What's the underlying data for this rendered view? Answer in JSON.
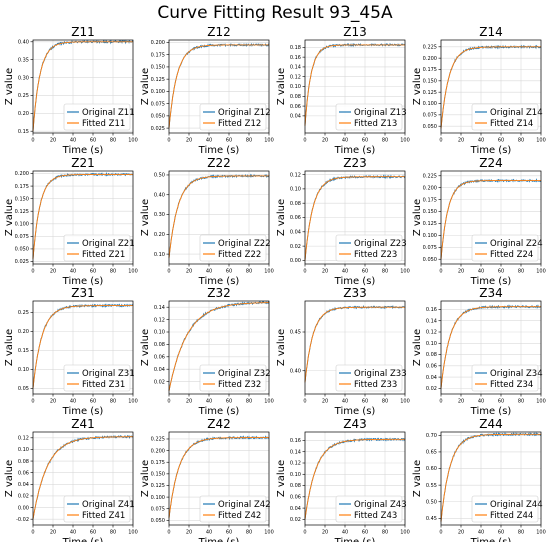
{
  "figure": {
    "title": "Curve Fitting Result 93_45A"
  },
  "colors": {
    "original": "#1f77b4",
    "fitted": "#ff7f0e",
    "grid": "#d9d9d9",
    "axes": "#000000"
  },
  "chart_data": [
    {
      "type": "line",
      "title": "Z11",
      "xlabel": "Time (s)",
      "ylabel": "Z value",
      "xlim": [
        0,
        100
      ],
      "xticks": [
        0,
        20,
        40,
        60,
        80,
        100
      ],
      "ylim": [
        0.145,
        0.405
      ],
      "yticks": [
        0.15,
        0.2,
        0.25,
        0.3,
        0.35,
        0.4
      ],
      "ytick_labels": [
        "0.15",
        "0.20",
        "0.25",
        "0.30",
        "0.35",
        "0.40"
      ],
      "y0": 0.15,
      "yinf": 0.4,
      "tau": 7,
      "legend": "lower-right",
      "grid": true,
      "series": [
        {
          "name": "Original Z11",
          "role": "original"
        },
        {
          "name": "Fitted Z11",
          "role": "fitted"
        }
      ]
    },
    {
      "type": "line",
      "title": "Z12",
      "xlabel": "Time (s)",
      "ylabel": "Z value",
      "xlim": [
        0,
        100
      ],
      "xticks": [
        0,
        20,
        40,
        60,
        80,
        100
      ],
      "ylim": [
        0.015,
        0.205
      ],
      "yticks": [
        0.025,
        0.05,
        0.075,
        0.1,
        0.125,
        0.15,
        0.175,
        0.2
      ],
      "ytick_labels": [
        "0.025",
        "0.050",
        "0.075",
        "0.100",
        "0.125",
        "0.150",
        "0.175",
        "0.200"
      ],
      "y0": 0.025,
      "yinf": 0.195,
      "tau": 8,
      "legend": "lower-right",
      "grid": true,
      "series": [
        {
          "name": "Original Z12",
          "role": "original"
        },
        {
          "name": "Fitted Z12",
          "role": "fitted"
        }
      ]
    },
    {
      "type": "line",
      "title": "Z13",
      "xlabel": "Time (s)",
      "ylabel": "Z value",
      "xlim": [
        0,
        100
      ],
      "xticks": [
        0,
        20,
        40,
        60,
        80,
        100
      ],
      "ylim": [
        0.005,
        0.195
      ],
      "yticks": [
        0.04,
        0.06,
        0.08,
        0.1,
        0.12,
        0.14,
        0.16,
        0.18
      ],
      "ytick_labels": [
        "0.04",
        "0.06",
        "0.08",
        "0.10",
        "0.12",
        "0.14",
        "0.16",
        "0.18"
      ],
      "y0": 0.02,
      "yinf": 0.185,
      "tau": 6,
      "legend": "lower-right",
      "grid": true,
      "series": [
        {
          "name": "Original Z13",
          "role": "original"
        },
        {
          "name": "Fitted Z13",
          "role": "fitted"
        }
      ]
    },
    {
      "type": "line",
      "title": "Z14",
      "xlabel": "Time (s)",
      "ylabel": "Z value",
      "xlim": [
        0,
        100
      ],
      "xticks": [
        0,
        20,
        40,
        60,
        80,
        100
      ],
      "ylim": [
        0.035,
        0.24
      ],
      "yticks": [
        0.05,
        0.075,
        0.1,
        0.125,
        0.15,
        0.175,
        0.2,
        0.225
      ],
      "ytick_labels": [
        "0.050",
        "0.075",
        "0.100",
        "0.125",
        "0.150",
        "0.175",
        "0.200",
        "0.225"
      ],
      "y0": 0.045,
      "yinf": 0.225,
      "tau": 8,
      "legend": "lower-right",
      "grid": true,
      "series": [
        {
          "name": "Original Z14",
          "role": "original"
        },
        {
          "name": "Fitted Z14",
          "role": "fitted"
        }
      ]
    },
    {
      "type": "line",
      "title": "Z21",
      "xlabel": "Time (s)",
      "ylabel": "Z value",
      "xlim": [
        0,
        100
      ],
      "xticks": [
        0,
        20,
        40,
        60,
        80,
        100
      ],
      "ylim": [
        0.02,
        0.205
      ],
      "yticks": [
        0.025,
        0.05,
        0.075,
        0.1,
        0.125,
        0.15,
        0.175,
        0.2
      ],
      "ytick_labels": [
        "0.025",
        "0.050",
        "0.075",
        "0.100",
        "0.125",
        "0.150",
        "0.175",
        "0.200"
      ],
      "y0": 0.03,
      "yinf": 0.198,
      "tau": 7,
      "legend": "lower-right",
      "grid": true,
      "series": [
        {
          "name": "Original Z21",
          "role": "original"
        },
        {
          "name": "Fitted Z21",
          "role": "fitted"
        }
      ]
    },
    {
      "type": "line",
      "title": "Z22",
      "xlabel": "Time (s)",
      "ylabel": "Z value",
      "xlim": [
        0,
        100
      ],
      "xticks": [
        0,
        20,
        40,
        60,
        80,
        100
      ],
      "ylim": [
        0.05,
        0.52
      ],
      "yticks": [
        0.1,
        0.2,
        0.3,
        0.4,
        0.5
      ],
      "ytick_labels": [
        "0.10",
        "0.20",
        "0.30",
        "0.40",
        "0.50"
      ],
      "y0": 0.08,
      "yinf": 0.495,
      "tau": 9,
      "legend": "lower-right",
      "grid": true,
      "series": [
        {
          "name": "Original Z22",
          "role": "original"
        },
        {
          "name": "Fitted Z22",
          "role": "fitted"
        }
      ]
    },
    {
      "type": "line",
      "title": "Z23",
      "xlabel": "Time (s)",
      "ylabel": "Z value",
      "xlim": [
        0,
        100
      ],
      "xticks": [
        0,
        20,
        40,
        60,
        80,
        100
      ],
      "ylim": [
        -0.005,
        0.125
      ],
      "yticks": [
        0.0,
        0.02,
        0.04,
        0.06,
        0.08,
        0.1,
        0.12
      ],
      "ytick_labels": [
        "0.00",
        "0.02",
        "0.04",
        "0.06",
        "0.08",
        "0.10",
        "0.12"
      ],
      "y0": 0.0,
      "yinf": 0.117,
      "tau": 8,
      "legend": "lower-right",
      "grid": true,
      "series": [
        {
          "name": "Original Z23",
          "role": "original"
        },
        {
          "name": "Fitted Z23",
          "role": "fitted"
        }
      ]
    },
    {
      "type": "line",
      "title": "Z24",
      "xlabel": "Time (s)",
      "ylabel": "Z value",
      "xlim": [
        0,
        100
      ],
      "xticks": [
        0,
        20,
        40,
        60,
        80,
        100
      ],
      "ylim": [
        0.04,
        0.235
      ],
      "yticks": [
        0.05,
        0.075,
        0.1,
        0.125,
        0.15,
        0.175,
        0.2,
        0.225
      ],
      "ytick_labels": [
        "0.050",
        "0.075",
        "0.100",
        "0.125",
        "0.150",
        "0.175",
        "0.200",
        "0.225"
      ],
      "y0": 0.05,
      "yinf": 0.215,
      "tau": 7,
      "legend": "lower-right",
      "grid": true,
      "series": [
        {
          "name": "Original Z24",
          "role": "original"
        },
        {
          "name": "Fitted Z24",
          "role": "fitted"
        }
      ]
    },
    {
      "type": "line",
      "title": "Z31",
      "xlabel": "Time (s)",
      "ylabel": "Z value",
      "xlim": [
        0,
        100
      ],
      "xticks": [
        0,
        20,
        40,
        60,
        80,
        100
      ],
      "ylim": [
        0.035,
        0.28
      ],
      "yticks": [
        0.05,
        0.1,
        0.15,
        0.2,
        0.25
      ],
      "ytick_labels": [
        "0.05",
        "0.10",
        "0.15",
        "0.20",
        "0.25"
      ],
      "y0": 0.05,
      "yinf": 0.268,
      "tau": 9,
      "legend": "lower-right",
      "grid": true,
      "series": [
        {
          "name": "Original Z31",
          "role": "original"
        },
        {
          "name": "Fitted Z31",
          "role": "fitted"
        }
      ]
    },
    {
      "type": "line",
      "title": "Z32",
      "xlabel": "Time (s)",
      "ylabel": "Z value",
      "xlim": [
        0,
        100
      ],
      "xticks": [
        0,
        20,
        40,
        60,
        80,
        100
      ],
      "ylim": [
        0.0,
        0.15
      ],
      "yticks": [
        0.02,
        0.04,
        0.06,
        0.08,
        0.1,
        0.12,
        0.14
      ],
      "ytick_labels": [
        "0.02",
        "0.04",
        "0.06",
        "0.08",
        "0.10",
        "0.12",
        "0.14"
      ],
      "y0": 0.005,
      "yinf": 0.148,
      "tau": 18,
      "legend": "lower-right",
      "grid": true,
      "series": [
        {
          "name": "Original Z32",
          "role": "original"
        },
        {
          "name": "Fitted Z32",
          "role": "fitted"
        }
      ]
    },
    {
      "type": "line",
      "title": "Z33",
      "xlabel": "Time (s)",
      "ylabel": "Z value",
      "xlim": [
        0,
        100
      ],
      "xticks": [
        0,
        20,
        40,
        60,
        80,
        100
      ],
      "ylim": [
        0.37,
        0.49
      ],
      "yticks": [
        0.4,
        0.45
      ],
      "ytick_labels": [
        "0.40",
        "0.45"
      ],
      "y0": 0.385,
      "yinf": 0.482,
      "tau": 8,
      "legend": "lower-right",
      "grid": true,
      "series": [
        {
          "name": "Original Z33",
          "role": "original"
        },
        {
          "name": "Fitted Z33",
          "role": "fitted"
        }
      ]
    },
    {
      "type": "line",
      "title": "Z34",
      "xlabel": "Time (s)",
      "ylabel": "Z value",
      "xlim": [
        0,
        100
      ],
      "xticks": [
        0,
        20,
        40,
        60,
        80,
        100
      ],
      "ylim": [
        0.01,
        0.175
      ],
      "yticks": [
        0.02,
        0.04,
        0.06,
        0.08,
        0.1,
        0.12,
        0.14,
        0.16
      ],
      "ytick_labels": [
        "0.02",
        "0.04",
        "0.06",
        "0.08",
        "0.10",
        "0.12",
        "0.14",
        "0.16"
      ],
      "y0": 0.02,
      "yinf": 0.165,
      "tau": 9,
      "legend": "lower-right",
      "grid": true,
      "series": [
        {
          "name": "Original Z34",
          "role": "original"
        },
        {
          "name": "Fitted Z34",
          "role": "fitted"
        }
      ]
    },
    {
      "type": "line",
      "title": "Z41",
      "xlabel": "Time (s)",
      "ylabel": "Z value",
      "xlim": [
        0,
        100
      ],
      "xticks": [
        0,
        20,
        40,
        60,
        80,
        100
      ],
      "ylim": [
        -0.03,
        0.13
      ],
      "yticks": [
        -0.02,
        0.0,
        0.02,
        0.04,
        0.06,
        0.08,
        0.1,
        0.12
      ],
      "ytick_labels": [
        "-0.02",
        "0.00",
        "0.02",
        "0.04",
        "0.06",
        "0.08",
        "0.10",
        "0.12"
      ],
      "y0": -0.02,
      "yinf": 0.122,
      "tau": 14,
      "legend": "lower-right",
      "grid": true,
      "series": [
        {
          "name": "Original Z41",
          "role": "original"
        },
        {
          "name": "Fitted Z41",
          "role": "fitted"
        }
      ]
    },
    {
      "type": "line",
      "title": "Z42",
      "xlabel": "Time (s)",
      "ylabel": "Z value",
      "xlim": [
        0,
        100
      ],
      "xticks": [
        0,
        20,
        40,
        60,
        80,
        100
      ],
      "ylim": [
        0.04,
        0.24
      ],
      "yticks": [
        0.05,
        0.075,
        0.1,
        0.125,
        0.15,
        0.175,
        0.2,
        0.225
      ],
      "ytick_labels": [
        "0.050",
        "0.075",
        "0.100",
        "0.125",
        "0.150",
        "0.175",
        "0.200",
        "0.225"
      ],
      "y0": 0.055,
      "yinf": 0.228,
      "tau": 10,
      "legend": "lower-right",
      "grid": true,
      "series": [
        {
          "name": "Original Z42",
          "role": "original"
        },
        {
          "name": "Fitted Z42",
          "role": "fitted"
        }
      ]
    },
    {
      "type": "line",
      "title": "Z43",
      "xlabel": "Time (s)",
      "ylabel": "Z value",
      "xlim": [
        0,
        100
      ],
      "xticks": [
        0,
        20,
        40,
        60,
        80,
        100
      ],
      "ylim": [
        0.01,
        0.175
      ],
      "yticks": [
        0.02,
        0.04,
        0.06,
        0.08,
        0.1,
        0.12,
        0.14,
        0.16
      ],
      "ytick_labels": [
        "0.02",
        "0.04",
        "0.06",
        "0.08",
        "0.10",
        "0.12",
        "0.14",
        "0.16"
      ],
      "y0": 0.02,
      "yinf": 0.162,
      "tau": 11,
      "legend": "lower-right",
      "grid": true,
      "series": [
        {
          "name": "Original Z43",
          "role": "original"
        },
        {
          "name": "Fitted Z43",
          "role": "fitted"
        }
      ]
    },
    {
      "type": "line",
      "title": "Z44",
      "xlabel": "Time (s)",
      "ylabel": "Z value",
      "xlim": [
        0,
        100
      ],
      "xticks": [
        0,
        20,
        40,
        60,
        80,
        100
      ],
      "ylim": [
        0.43,
        0.71
      ],
      "yticks": [
        0.45,
        0.5,
        0.55,
        0.6,
        0.65,
        0.7
      ],
      "ytick_labels": [
        "0.45",
        "0.50",
        "0.55",
        "0.60",
        "0.65",
        "0.70"
      ],
      "y0": 0.44,
      "yinf": 0.703,
      "tau": 9,
      "legend": "lower-right",
      "grid": true,
      "series": [
        {
          "name": "Original Z44",
          "role": "original"
        },
        {
          "name": "Fitted Z44",
          "role": "fitted"
        }
      ]
    }
  ]
}
